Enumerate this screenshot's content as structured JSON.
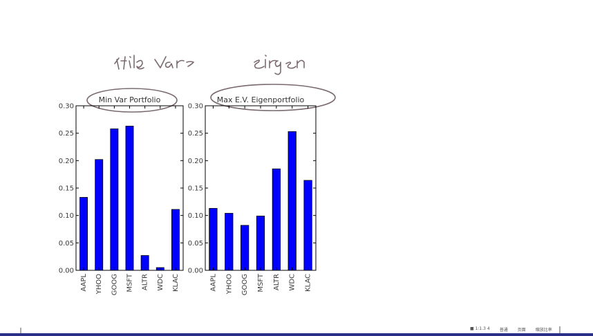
{
  "annotations": {
    "left_note": "stile var",
    "right_note": "eirgen"
  },
  "chart_data": [
    {
      "type": "bar",
      "title": "Min Var Portfolio",
      "categories": [
        "AAPL",
        "YHOO",
        "GOOG",
        "MSFT",
        "ALTR",
        "WDC",
        "KLAC"
      ],
      "values": [
        0.133,
        0.202,
        0.258,
        0.263,
        0.027,
        0.005,
        0.111
      ],
      "ylim": [
        0,
        0.3
      ],
      "yticks": [
        "0.00",
        "0.05",
        "0.10",
        "0.15",
        "0.20",
        "0.25",
        "0.30"
      ],
      "color": "#0000ff",
      "grid": false
    },
    {
      "type": "bar",
      "title": "Max E.V. Eigenportfolio",
      "categories": [
        "AAPL",
        "YHOO",
        "GOOG",
        "MSFT",
        "ALTR",
        "WDC",
        "KLAC"
      ],
      "values": [
        0.113,
        0.104,
        0.082,
        0.099,
        0.185,
        0.253,
        0.164
      ],
      "ylim": [
        0,
        0.3
      ],
      "yticks": [
        "0.00",
        "0.05",
        "0.10",
        "0.15",
        "0.20",
        "0.25",
        "0.30"
      ],
      "color": "#0000ff",
      "grid": false
    }
  ],
  "status_bar": {
    "items": [
      "■ 1:1.3 4",
      "普通",
      "页面",
      "缩放比率"
    ]
  }
}
